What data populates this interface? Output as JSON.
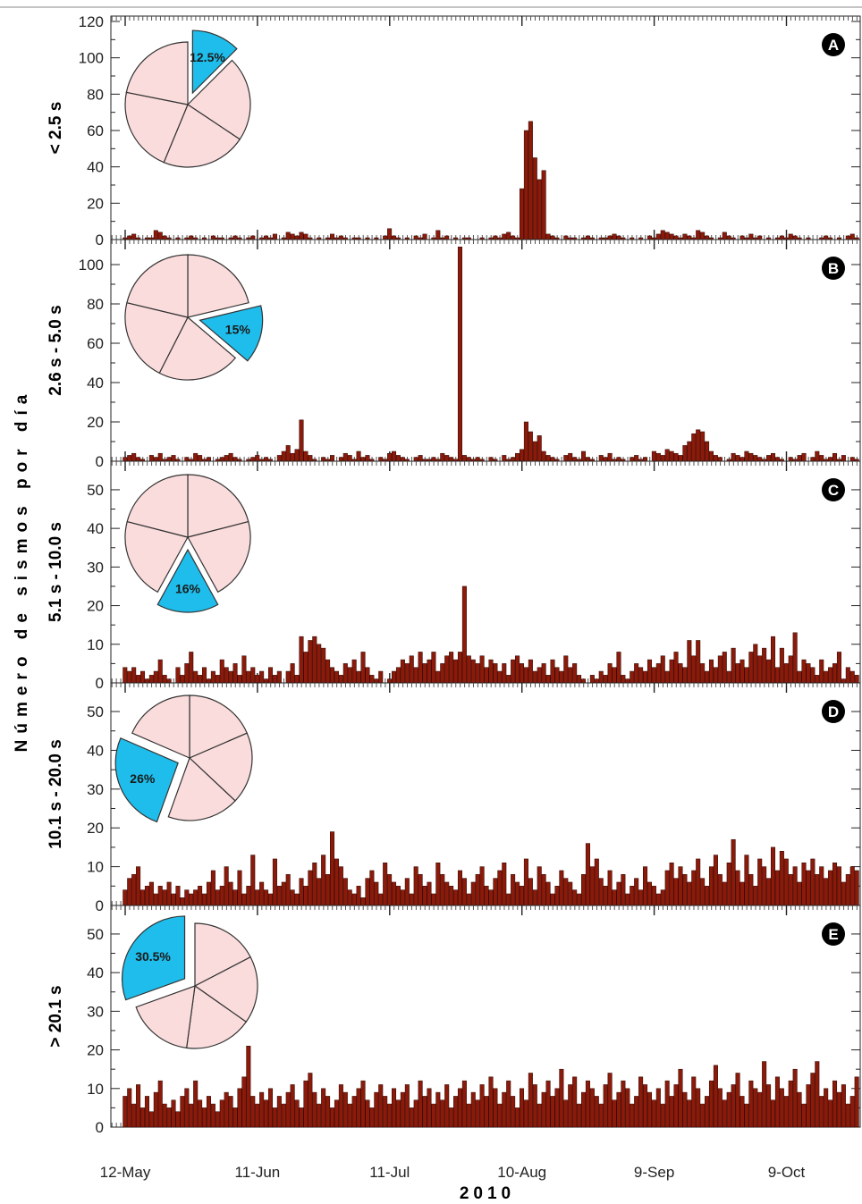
{
  "figure": {
    "shared_ylabel": "Número de sismos por día",
    "xlabel": "2010",
    "x_tick_labels": [
      "12-May",
      "11-Jun",
      "11-Jul",
      "10-Aug",
      "9-Sep",
      "9-Oct"
    ],
    "x_tick_days": [
      0,
      30,
      60,
      90,
      120,
      150
    ],
    "bar_color": "#8B1A0A",
    "bar_edge_color": "#2a0500",
    "pie_slice_color": "#FBDCDC",
    "pie_highlight_color": "#1EBDEB",
    "badge_color": "#000000"
  },
  "chart_data": [
    {
      "type": "bar",
      "panel": "A",
      "ylabel": "< 2.5 s",
      "ylim": [
        0,
        120
      ],
      "yticks": [
        0,
        20,
        40,
        60,
        80,
        100,
        120
      ],
      "x_start": "12-May",
      "x_unit": "day",
      "values": [
        1,
        2,
        3,
        1,
        0,
        1,
        1,
        5,
        4,
        2,
        1,
        0,
        1,
        0,
        1,
        2,
        1,
        0,
        1,
        0,
        2,
        1,
        1,
        0,
        1,
        2,
        1,
        0,
        1,
        2,
        0,
        1,
        2,
        1,
        3,
        0,
        1,
        4,
        3,
        2,
        4,
        3,
        1,
        0,
        1,
        0,
        1,
        3,
        1,
        2,
        1,
        0,
        1,
        1,
        0,
        1,
        0,
        1,
        0,
        2,
        6,
        2,
        1,
        0,
        1,
        0,
        2,
        1,
        3,
        0,
        1,
        5,
        1,
        2,
        0,
        1,
        0,
        1,
        1,
        0,
        0,
        1,
        0,
        1,
        2,
        1,
        3,
        4,
        2,
        1,
        28,
        60,
        65,
        45,
        33,
        38,
        3,
        2,
        1,
        0,
        2,
        1,
        1,
        0,
        1,
        2,
        1,
        0,
        1,
        1,
        2,
        3,
        2,
        1,
        0,
        1,
        0,
        1,
        0,
        2,
        1,
        3,
        5,
        4,
        3,
        2,
        1,
        3,
        2,
        1,
        5,
        4,
        2,
        1,
        0,
        1,
        4,
        2,
        1,
        0,
        2,
        1,
        3,
        1,
        2,
        0,
        1,
        0,
        1,
        2,
        1,
        3,
        2,
        1,
        0,
        1,
        0,
        0,
        1,
        2,
        1,
        0,
        1,
        0,
        2,
        3,
        1,
        1,
        0,
        1,
        0,
        2,
        3,
        1,
        3,
        0,
        4,
        1,
        2,
        0,
        1,
        2
      ]
    },
    {
      "type": "bar",
      "panel": "B",
      "ylabel": "2.6 s - 5.0 s",
      "ylim": [
        0,
        110
      ],
      "yticks": [
        0,
        20,
        40,
        60,
        80,
        100
      ],
      "x_start": "12-May",
      "x_unit": "day",
      "values": [
        2,
        3,
        4,
        2,
        1,
        0,
        3,
        2,
        4,
        1,
        2,
        3,
        1,
        0,
        2,
        1,
        4,
        3,
        1,
        2,
        0,
        1,
        2,
        3,
        4,
        2,
        1,
        0,
        1,
        2,
        3,
        1,
        2,
        1,
        0,
        3,
        5,
        8,
        4,
        6,
        21,
        5,
        3,
        1,
        0,
        2,
        1,
        3,
        0,
        2,
        4,
        3,
        1,
        5,
        2,
        3,
        1,
        0,
        2,
        1,
        4,
        5,
        3,
        2,
        1,
        0,
        2,
        3,
        1,
        1,
        2,
        1,
        4,
        3,
        2,
        1,
        109,
        3,
        2,
        1,
        2,
        1,
        0,
        2,
        1,
        0,
        3,
        1,
        2,
        4,
        6,
        20,
        15,
        10,
        13,
        5,
        3,
        2,
        1,
        0,
        3,
        4,
        2,
        1,
        5,
        2,
        1,
        0,
        3,
        2,
        4,
        1,
        2,
        1,
        0,
        2,
        3,
        1,
        2,
        0,
        5,
        4,
        3,
        6,
        5,
        4,
        3,
        8,
        10,
        14,
        16,
        15,
        10,
        5,
        3,
        2,
        0,
        1,
        4,
        3,
        2,
        5,
        4,
        3,
        2,
        1,
        3,
        4,
        2,
        1,
        0,
        2,
        1,
        3,
        4,
        0,
        2,
        5,
        3,
        1,
        2,
        4,
        1,
        3,
        0,
        2,
        1,
        3,
        1,
        2,
        1,
        2,
        0,
        1,
        2,
        3,
        1,
        4,
        2,
        1,
        3,
        2
      ]
    },
    {
      "type": "bar",
      "panel": "C",
      "ylabel": "5.1 s - 10.0 s",
      "ylim": [
        0,
        56
      ],
      "yticks": [
        0,
        10,
        20,
        30,
        40,
        50
      ],
      "x_start": "12-May",
      "x_unit": "day",
      "values": [
        4,
        3,
        4,
        2,
        3,
        1,
        2,
        3,
        6,
        2,
        1,
        0,
        4,
        2,
        5,
        8,
        3,
        2,
        4,
        1,
        3,
        2,
        6,
        4,
        3,
        5,
        2,
        7,
        3,
        4,
        2,
        3,
        1,
        4,
        2,
        3,
        0,
        3,
        5,
        2,
        12,
        8,
        11,
        12,
        10,
        9,
        6,
        4,
        3,
        2,
        5,
        4,
        6,
        3,
        8,
        4,
        2,
        1,
        3,
        0,
        1,
        3,
        4,
        6,
        5,
        7,
        4,
        8,
        5,
        6,
        8,
        3,
        5,
        7,
        8,
        6,
        8,
        25,
        7,
        6,
        5,
        7,
        4,
        6,
        5,
        3,
        5,
        2,
        6,
        7,
        5,
        4,
        6,
        3,
        4,
        5,
        2,
        6,
        4,
        3,
        7,
        4,
        5,
        2,
        1,
        0,
        2,
        1,
        3,
        2,
        5,
        4,
        8,
        2,
        1,
        3,
        5,
        4,
        3,
        6,
        4,
        5,
        7,
        3,
        6,
        8,
        5,
        4,
        11,
        7,
        11,
        5,
        3,
        6,
        4,
        7,
        8,
        3,
        9,
        5,
        6,
        4,
        8,
        10,
        7,
        9,
        6,
        12,
        4,
        9,
        5,
        7,
        13,
        3,
        6,
        5,
        4,
        2,
        6,
        3,
        4,
        5,
        8,
        1,
        4,
        3,
        2,
        6,
        4,
        3,
        2
      ]
    },
    {
      "type": "bar",
      "panel": "D",
      "ylabel": "10.1 s - 20.0 s",
      "ylim": [
        0,
        56
      ],
      "yticks": [
        0,
        10,
        20,
        30,
        40,
        50
      ],
      "x_start": "12-May",
      "x_unit": "day",
      "values": [
        4,
        7,
        8,
        10,
        4,
        5,
        6,
        3,
        5,
        4,
        6,
        3,
        5,
        2,
        4,
        3,
        4,
        5,
        3,
        6,
        9,
        4,
        5,
        10,
        6,
        4,
        9,
        3,
        5,
        13,
        4,
        6,
        4,
        3,
        12,
        5,
        6,
        8,
        4,
        3,
        7,
        5,
        9,
        11,
        7,
        13,
        8,
        19,
        12,
        10,
        7,
        4,
        3,
        5,
        2,
        7,
        9,
        6,
        3,
        11,
        8,
        6,
        5,
        4,
        7,
        3,
        10,
        8,
        5,
        6,
        3,
        11,
        8,
        6,
        5,
        4,
        9,
        7,
        3,
        6,
        8,
        10,
        5,
        4,
        7,
        9,
        11,
        3,
        8,
        6,
        5,
        12,
        7,
        4,
        10,
        8,
        6,
        3,
        5,
        9,
        7,
        6,
        4,
        3,
        8,
        16,
        10,
        12,
        7,
        5,
        9,
        4,
        6,
        8,
        3,
        5,
        7,
        4,
        10,
        6,
        5,
        3,
        4,
        9,
        11,
        7,
        10,
        8,
        6,
        9,
        12,
        7,
        5,
        10,
        13,
        8,
        6,
        11,
        17,
        9,
        6,
        13,
        8,
        5,
        12,
        10,
        7,
        15,
        9,
        14,
        12,
        8,
        10,
        6,
        11,
        9,
        12,
        8,
        10,
        7,
        9,
        11,
        10,
        6,
        8,
        10,
        9,
        12,
        8,
        10,
        7,
        9,
        11,
        8,
        13,
        10,
        7,
        5,
        4
      ]
    },
    {
      "type": "bar",
      "panel": "E",
      "ylabel": "> 20.1 s",
      "ylim": [
        0,
        56
      ],
      "yticks": [
        0,
        10,
        20,
        30,
        40,
        50
      ],
      "x_start": "12-May",
      "x_unit": "day",
      "values": [
        8,
        10,
        6,
        11,
        5,
        8,
        4,
        9,
        12,
        6,
        5,
        7,
        4,
        8,
        10,
        6,
        12,
        7,
        5,
        8,
        6,
        4,
        7,
        9,
        8,
        5,
        10,
        13,
        21,
        8,
        6,
        9,
        7,
        10,
        5,
        8,
        6,
        9,
        11,
        7,
        5,
        12,
        14,
        9,
        6,
        10,
        8,
        5,
        7,
        11,
        9,
        6,
        8,
        10,
        12,
        7,
        5,
        9,
        11,
        8,
        6,
        10,
        7,
        9,
        11,
        5,
        7,
        12,
        8,
        10,
        6,
        9,
        7,
        11,
        5,
        8,
        10,
        12,
        6,
        9,
        7,
        11,
        8,
        13,
        10,
        6,
        9,
        12,
        8,
        5,
        10,
        7,
        14,
        11,
        6,
        9,
        12,
        8,
        10,
        15,
        7,
        11,
        13,
        6,
        9,
        12,
        10,
        8,
        6,
        11,
        14,
        7,
        9,
        12,
        10,
        6,
        8,
        13,
        11,
        9,
        7,
        10,
        6,
        12,
        8,
        11,
        15,
        9,
        7,
        13,
        10,
        6,
        8,
        12,
        16,
        10,
        7,
        9,
        11,
        14,
        8,
        6,
        12,
        10,
        9,
        17,
        11,
        7,
        13,
        10,
        8,
        12,
        15,
        9,
        6,
        11,
        14,
        17,
        8,
        10,
        7,
        12,
        9,
        11,
        6,
        8,
        13,
        10,
        9,
        11,
        7,
        12,
        14,
        9,
        10,
        8,
        6,
        11
      ]
    },
    {
      "type": "pie",
      "panel": "A",
      "slices": [
        12.5,
        21.875,
        21.875,
        21.875,
        21.875
      ],
      "highlight_index": 0,
      "highlight_label": "12.5%"
    },
    {
      "type": "pie",
      "panel": "B",
      "slices": [
        21.25,
        15,
        21.25,
        21.25,
        21.25
      ],
      "highlight_index": 1,
      "highlight_label": "15%"
    },
    {
      "type": "pie",
      "panel": "C",
      "slices": [
        21,
        21,
        16,
        21,
        21
      ],
      "highlight_index": 2,
      "highlight_label": "16%"
    },
    {
      "type": "pie",
      "panel": "D",
      "slices": [
        18.5,
        18.5,
        18.5,
        26,
        18.5
      ],
      "highlight_index": 3,
      "highlight_label": "26%"
    },
    {
      "type": "pie",
      "panel": "E",
      "slices": [
        17.375,
        17.375,
        17.375,
        17.375,
        30.5
      ],
      "highlight_index": 4,
      "highlight_label": "30.5%"
    }
  ]
}
